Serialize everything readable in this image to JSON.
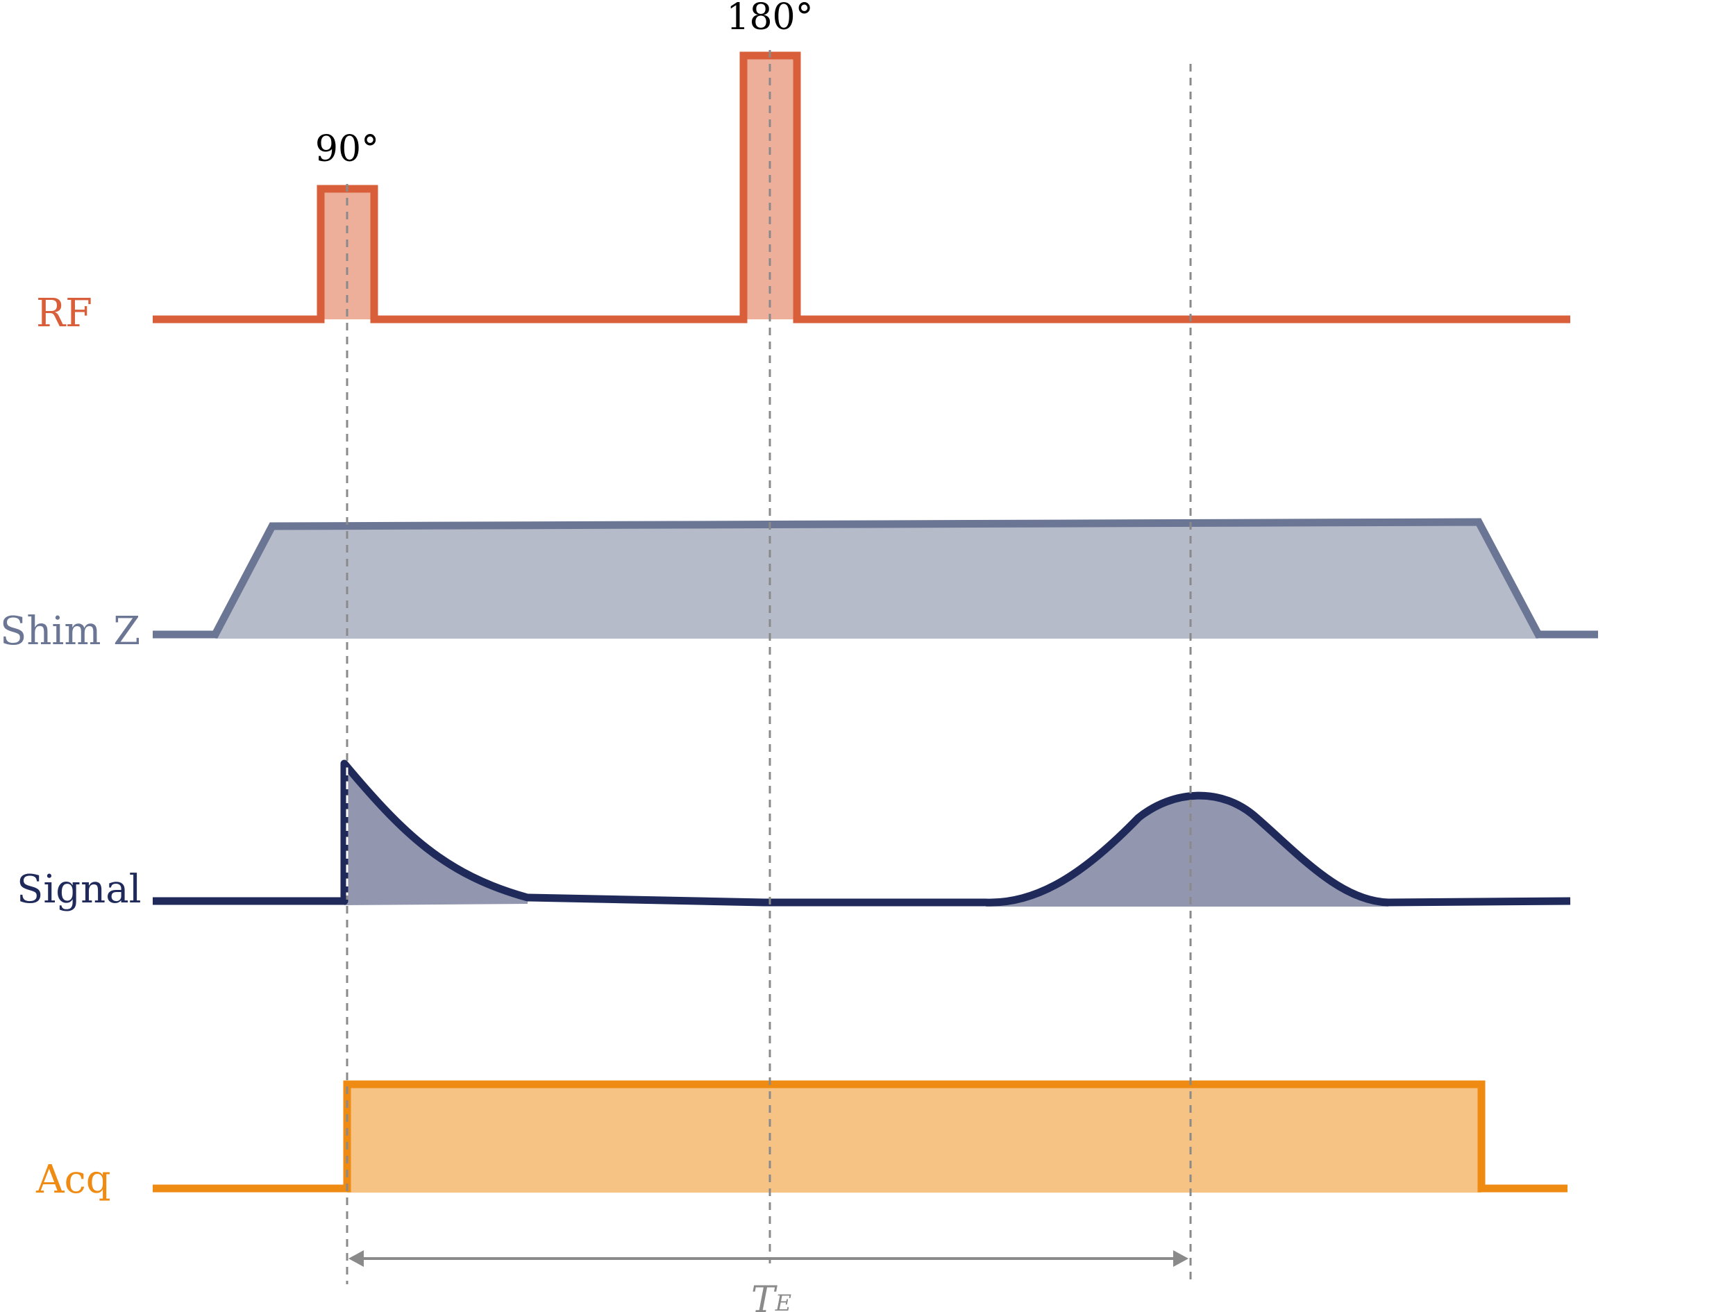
{
  "channels": {
    "rf": {
      "label": "RF",
      "color": "#d95f3b",
      "fill": "#edaf9a"
    },
    "shim": {
      "label": "Shim Z",
      "color": "#6b7594",
      "fill": "#b6bbca"
    },
    "signal": {
      "label": "Signal",
      "color": "#1f2a5a",
      "fill": "#9297af"
    },
    "acq": {
      "label": "Acq",
      "color": "#ef8a12",
      "fill": "#f7c385"
    }
  },
  "pulses": {
    "p90": {
      "label": "90°"
    },
    "p180": {
      "label": "180°"
    }
  },
  "echo_time": {
    "symbol": "T",
    "subscript": "E"
  },
  "guide_color": "#8a8a8a"
}
